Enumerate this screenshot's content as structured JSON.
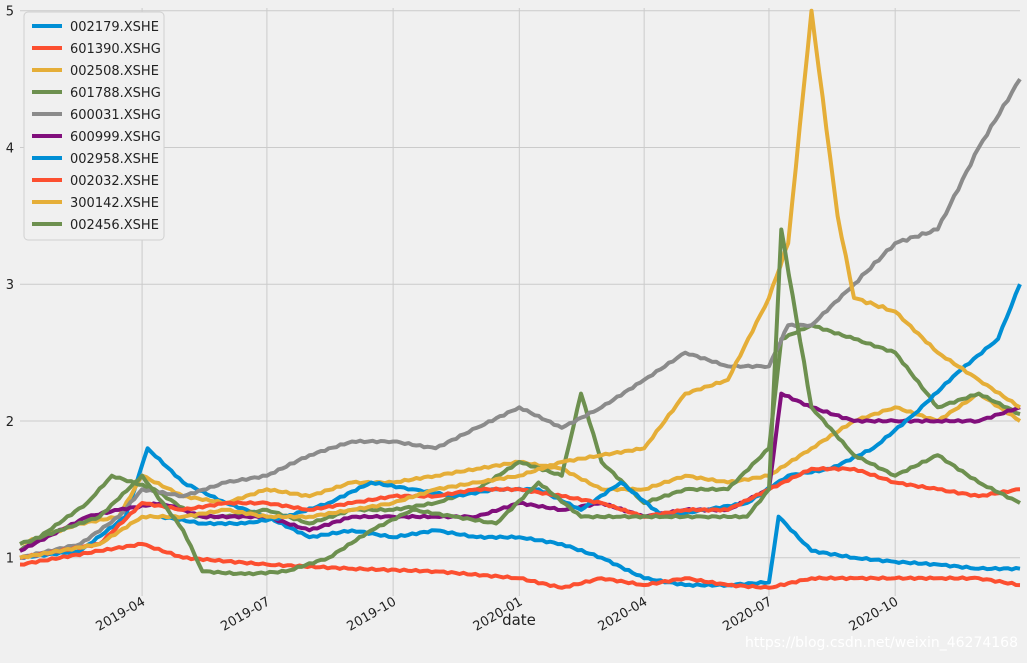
{
  "chart_data": {
    "type": "line",
    "title": "",
    "xlabel": "date",
    "ylabel": "",
    "x_tick_labels": [
      "2019-04",
      "2019-07",
      "2019-10",
      "2020-01",
      "2020-04",
      "2020-07",
      "2020-10"
    ],
    "y_tick_labels": [
      "1",
      "2",
      "3",
      "4",
      "5"
    ],
    "y_ticks": [
      1,
      2,
      3,
      4,
      5
    ],
    "ylim": [
      0.72,
      5.02
    ],
    "xlim": [
      "2019-01-02",
      "2020-12-31"
    ],
    "grid": true,
    "legend_position": "top-left",
    "series": [
      {
        "name": "002179.XSHE",
        "color": "#008fd5",
        "points": [
          [
            "2019-01-02",
            1.0
          ],
          [
            "2019-02-15",
            1.05
          ],
          [
            "2019-03-20",
            1.3
          ],
          [
            "2019-04-05",
            1.8
          ],
          [
            "2019-05-01",
            1.55
          ],
          [
            "2019-06-01",
            1.4
          ],
          [
            "2019-07-01",
            1.3
          ],
          [
            "2019-08-01",
            1.15
          ],
          [
            "2019-09-01",
            1.2
          ],
          [
            "2019-10-01",
            1.15
          ],
          [
            "2019-11-01",
            1.2
          ],
          [
            "2019-12-01",
            1.15
          ],
          [
            "2020-01-01",
            1.15
          ],
          [
            "2020-02-01",
            1.1
          ],
          [
            "2020-03-01",
            1.0
          ],
          [
            "2020-04-01",
            0.85
          ],
          [
            "2020-05-01",
            0.8
          ],
          [
            "2020-06-01",
            0.8
          ],
          [
            "2020-07-01",
            0.82
          ],
          [
            "2020-07-08",
            1.3
          ],
          [
            "2020-08-01",
            1.05
          ],
          [
            "2020-09-01",
            1.0
          ],
          [
            "2020-10-01",
            0.97
          ],
          [
            "2020-11-01",
            0.95
          ],
          [
            "2020-12-01",
            0.92
          ],
          [
            "2020-12-31",
            0.92
          ]
        ]
      },
      {
        "name": "601390.XSHG",
        "color": "#fc4f30",
        "points": [
          [
            "2019-01-02",
            0.95
          ],
          [
            "2019-03-01",
            1.05
          ],
          [
            "2019-04-01",
            1.1
          ],
          [
            "2019-05-01",
            1.0
          ],
          [
            "2019-07-01",
            0.95
          ],
          [
            "2019-09-01",
            0.92
          ],
          [
            "2019-11-01",
            0.9
          ],
          [
            "2020-01-01",
            0.85
          ],
          [
            "2020-02-01",
            0.78
          ],
          [
            "2020-03-01",
            0.85
          ],
          [
            "2020-04-01",
            0.8
          ],
          [
            "2020-05-01",
            0.85
          ],
          [
            "2020-06-01",
            0.8
          ],
          [
            "2020-07-01",
            0.78
          ],
          [
            "2020-08-01",
            0.85
          ],
          [
            "2020-09-01",
            0.85
          ],
          [
            "2020-10-01",
            0.85
          ],
          [
            "2020-11-01",
            0.85
          ],
          [
            "2020-12-01",
            0.85
          ],
          [
            "2020-12-31",
            0.8
          ]
        ]
      },
      {
        "name": "002508.XSHE",
        "color": "#e5ae38",
        "points": [
          [
            "2019-01-02",
            1.1
          ],
          [
            "2019-02-15",
            1.25
          ],
          [
            "2019-03-15",
            1.3
          ],
          [
            "2019-04-01",
            1.6
          ],
          [
            "2019-05-01",
            1.45
          ],
          [
            "2019-06-01",
            1.4
          ],
          [
            "2019-07-01",
            1.5
          ],
          [
            "2019-08-01",
            1.45
          ],
          [
            "2019-09-01",
            1.55
          ],
          [
            "2019-10-01",
            1.55
          ],
          [
            "2019-11-01",
            1.6
          ],
          [
            "2019-12-01",
            1.65
          ],
          [
            "2020-01-01",
            1.7
          ],
          [
            "2020-02-01",
            1.65
          ],
          [
            "2020-03-01",
            1.5
          ],
          [
            "2020-04-01",
            1.5
          ],
          [
            "2020-05-01",
            1.6
          ],
          [
            "2020-06-01",
            1.55
          ],
          [
            "2020-07-01",
            1.6
          ],
          [
            "2020-08-01",
            1.8
          ],
          [
            "2020-09-01",
            2.0
          ],
          [
            "2020-10-01",
            2.1
          ],
          [
            "2020-11-01",
            2.0
          ],
          [
            "2020-12-01",
            2.2
          ],
          [
            "2020-12-31",
            2.0
          ]
        ]
      },
      {
        "name": "601788.XSHG",
        "color": "#6d904f",
        "points": [
          [
            "2019-01-02",
            1.05
          ],
          [
            "2019-02-20",
            1.4
          ],
          [
            "2019-03-10",
            1.6
          ],
          [
            "2019-04-10",
            1.5
          ],
          [
            "2019-05-10",
            1.3
          ],
          [
            "2019-06-01",
            1.3
          ],
          [
            "2019-07-01",
            1.35
          ],
          [
            "2019-08-01",
            1.25
          ],
          [
            "2019-09-01",
            1.35
          ],
          [
            "2019-10-01",
            1.35
          ],
          [
            "2019-11-01",
            1.4
          ],
          [
            "2019-12-01",
            1.5
          ],
          [
            "2020-01-01",
            1.7
          ],
          [
            "2020-02-01",
            1.6
          ],
          [
            "2020-02-15",
            2.2
          ],
          [
            "2020-03-01",
            1.7
          ],
          [
            "2020-04-01",
            1.4
          ],
          [
            "2020-05-01",
            1.5
          ],
          [
            "2020-06-01",
            1.5
          ],
          [
            "2020-07-01",
            1.8
          ],
          [
            "2020-07-10",
            2.6
          ],
          [
            "2020-08-01",
            2.7
          ],
          [
            "2020-09-01",
            2.6
          ],
          [
            "2020-10-01",
            2.5
          ],
          [
            "2020-11-01",
            2.1
          ],
          [
            "2020-12-01",
            2.2
          ],
          [
            "2020-12-31",
            2.05
          ]
        ]
      },
      {
        "name": "600031.XSHG",
        "color": "#8b8b8b",
        "points": [
          [
            "2019-01-02",
            1.0
          ],
          [
            "2019-02-15",
            1.1
          ],
          [
            "2019-03-15",
            1.3
          ],
          [
            "2019-04-01",
            1.5
          ],
          [
            "2019-05-01",
            1.45
          ],
          [
            "2019-06-01",
            1.55
          ],
          [
            "2019-07-01",
            1.6
          ],
          [
            "2019-08-01",
            1.75
          ],
          [
            "2019-09-01",
            1.85
          ],
          [
            "2019-10-01",
            1.85
          ],
          [
            "2019-11-01",
            1.8
          ],
          [
            "2019-12-01",
            1.95
          ],
          [
            "2020-01-01",
            2.1
          ],
          [
            "2020-02-01",
            1.95
          ],
          [
            "2020-03-01",
            2.1
          ],
          [
            "2020-04-01",
            2.3
          ],
          [
            "2020-05-01",
            2.5
          ],
          [
            "2020-06-01",
            2.4
          ],
          [
            "2020-07-01",
            2.4
          ],
          [
            "2020-07-15",
            2.7
          ],
          [
            "2020-08-01",
            2.7
          ],
          [
            "2020-09-01",
            3.0
          ],
          [
            "2020-10-01",
            3.3
          ],
          [
            "2020-11-01",
            3.4
          ],
          [
            "2020-12-01",
            4.0
          ],
          [
            "2020-12-31",
            4.5
          ]
        ]
      },
      {
        "name": "600999.XSHG",
        "color": "#810f7c",
        "points": [
          [
            "2019-01-02",
            1.05
          ],
          [
            "2019-02-20",
            1.3
          ],
          [
            "2019-03-15",
            1.35
          ],
          [
            "2019-04-15",
            1.4
          ],
          [
            "2019-05-15",
            1.3
          ],
          [
            "2019-07-01",
            1.3
          ],
          [
            "2019-08-01",
            1.2
          ],
          [
            "2019-09-01",
            1.3
          ],
          [
            "2019-10-01",
            1.3
          ],
          [
            "2019-11-01",
            1.3
          ],
          [
            "2019-12-01",
            1.3
          ],
          [
            "2020-01-01",
            1.4
          ],
          [
            "2020-02-01",
            1.35
          ],
          [
            "2020-03-01",
            1.4
          ],
          [
            "2020-04-01",
            1.3
          ],
          [
            "2020-05-01",
            1.35
          ],
          [
            "2020-06-01",
            1.35
          ],
          [
            "2020-07-01",
            1.5
          ],
          [
            "2020-07-10",
            2.2
          ],
          [
            "2020-08-01",
            2.1
          ],
          [
            "2020-09-01",
            2.0
          ],
          [
            "2020-10-01",
            2.0
          ],
          [
            "2020-11-01",
            2.0
          ],
          [
            "2020-12-01",
            2.0
          ],
          [
            "2020-12-31",
            2.1
          ]
        ]
      },
      {
        "name": "002958.XSHE",
        "color": "#008fd5",
        "points": [
          [
            "2019-04-15",
            1.3
          ],
          [
            "2019-05-15",
            1.25
          ],
          [
            "2019-06-15",
            1.25
          ],
          [
            "2019-07-15",
            1.3
          ],
          [
            "2019-08-15",
            1.4
          ],
          [
            "2019-09-15",
            1.55
          ],
          [
            "2019-10-15",
            1.5
          ],
          [
            "2019-11-15",
            1.45
          ],
          [
            "2019-12-15",
            1.5
          ],
          [
            "2020-01-15",
            1.5
          ],
          [
            "2020-02-15",
            1.35
          ],
          [
            "2020-03-15",
            1.55
          ],
          [
            "2020-04-15",
            1.3
          ],
          [
            "2020-05-15",
            1.35
          ],
          [
            "2020-06-15",
            1.4
          ],
          [
            "2020-07-15",
            1.6
          ],
          [
            "2020-08-15",
            1.65
          ],
          [
            "2020-09-15",
            1.8
          ],
          [
            "2020-10-15",
            2.05
          ],
          [
            "2020-11-15",
            2.35
          ],
          [
            "2020-12-15",
            2.6
          ],
          [
            "2020-12-31",
            3.0
          ]
        ]
      },
      {
        "name": "002032.XSHE",
        "color": "#fc4f30",
        "points": [
          [
            "2019-01-02",
            1.0
          ],
          [
            "2019-03-01",
            1.1
          ],
          [
            "2019-04-01",
            1.4
          ],
          [
            "2019-05-01",
            1.35
          ],
          [
            "2019-06-01",
            1.4
          ],
          [
            "2019-07-01",
            1.4
          ],
          [
            "2019-08-01",
            1.35
          ],
          [
            "2019-09-01",
            1.4
          ],
          [
            "2019-10-01",
            1.45
          ],
          [
            "2019-11-01",
            1.45
          ],
          [
            "2019-12-01",
            1.5
          ],
          [
            "2020-01-01",
            1.5
          ],
          [
            "2020-02-01",
            1.45
          ],
          [
            "2020-03-01",
            1.4
          ],
          [
            "2020-04-01",
            1.3
          ],
          [
            "2020-05-01",
            1.35
          ],
          [
            "2020-06-01",
            1.35
          ],
          [
            "2020-07-01",
            1.5
          ],
          [
            "2020-08-01",
            1.65
          ],
          [
            "2020-09-01",
            1.65
          ],
          [
            "2020-10-01",
            1.55
          ],
          [
            "2020-11-01",
            1.5
          ],
          [
            "2020-12-01",
            1.45
          ],
          [
            "2020-12-31",
            1.5
          ]
        ]
      },
      {
        "name": "300142.XSHE",
        "color": "#e5ae38",
        "points": [
          [
            "2019-01-02",
            1.0
          ],
          [
            "2019-03-01",
            1.1
          ],
          [
            "2019-04-01",
            1.3
          ],
          [
            "2019-05-01",
            1.3
          ],
          [
            "2019-06-01",
            1.35
          ],
          [
            "2019-07-01",
            1.3
          ],
          [
            "2019-08-01",
            1.3
          ],
          [
            "2019-09-01",
            1.35
          ],
          [
            "2019-10-01",
            1.4
          ],
          [
            "2019-11-01",
            1.5
          ],
          [
            "2019-12-01",
            1.55
          ],
          [
            "2020-01-01",
            1.6
          ],
          [
            "2020-02-01",
            1.7
          ],
          [
            "2020-03-01",
            1.75
          ],
          [
            "2020-04-01",
            1.8
          ],
          [
            "2020-05-01",
            2.2
          ],
          [
            "2020-06-01",
            2.3
          ],
          [
            "2020-07-01",
            2.9
          ],
          [
            "2020-07-15",
            3.3
          ],
          [
            "2020-08-01",
            5.0
          ],
          [
            "2020-08-20",
            3.5
          ],
          [
            "2020-09-01",
            2.9
          ],
          [
            "2020-10-01",
            2.8
          ],
          [
            "2020-11-01",
            2.5
          ],
          [
            "2020-12-01",
            2.3
          ],
          [
            "2020-12-31",
            2.1
          ]
        ]
      },
      {
        "name": "002456.XSHE",
        "color": "#6d904f",
        "points": [
          [
            "2019-01-02",
            1.1
          ],
          [
            "2019-03-01",
            1.3
          ],
          [
            "2019-04-01",
            1.6
          ],
          [
            "2019-05-01",
            1.2
          ],
          [
            "2019-05-15",
            0.9
          ],
          [
            "2019-06-15",
            0.88
          ],
          [
            "2019-07-15",
            0.9
          ],
          [
            "2019-08-15",
            1.0
          ],
          [
            "2019-09-15",
            1.2
          ],
          [
            "2019-10-15",
            1.35
          ],
          [
            "2019-11-15",
            1.3
          ],
          [
            "2019-12-15",
            1.25
          ],
          [
            "2020-01-15",
            1.55
          ],
          [
            "2020-02-15",
            1.3
          ],
          [
            "2020-03-15",
            1.3
          ],
          [
            "2020-04-15",
            1.3
          ],
          [
            "2020-05-15",
            1.3
          ],
          [
            "2020-06-15",
            1.3
          ],
          [
            "2020-07-01",
            1.5
          ],
          [
            "2020-07-10",
            3.4
          ],
          [
            "2020-08-01",
            2.1
          ],
          [
            "2020-09-01",
            1.75
          ],
          [
            "2020-10-01",
            1.6
          ],
          [
            "2020-11-01",
            1.75
          ],
          [
            "2020-12-01",
            1.55
          ],
          [
            "2020-12-31",
            1.4
          ]
        ]
      }
    ]
  },
  "watermark": "https://blog.csdn.net/weixin_46274168"
}
